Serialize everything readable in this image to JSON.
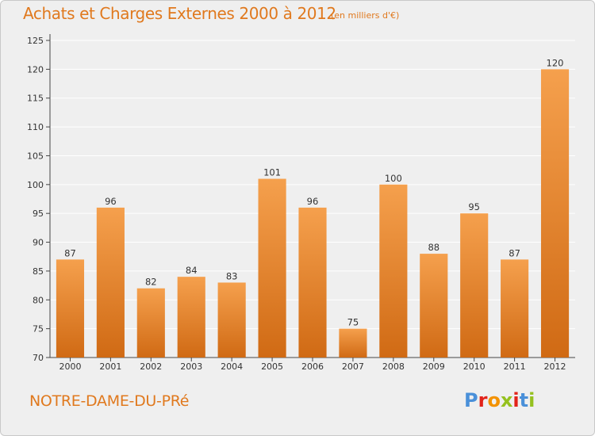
{
  "header": {
    "title": "Achats et Charges Externes 2000 à 2012",
    "subtitle": "(en milliers d'€)"
  },
  "footer": {
    "place": "NOTRE-DAME-DU-PRé",
    "logo": [
      "P",
      "r",
      "o",
      "x",
      "i",
      "t",
      "i"
    ]
  },
  "colors": {
    "title": "#e0791e",
    "bar_top": "#f5a04d",
    "bar_bottom": "#d06a14",
    "grid": "#ffffff",
    "background": "#efefef",
    "logo": [
      "#4a90d9",
      "#e2231a",
      "#f39200",
      "#95c11f",
      "#e2231a",
      "#4a90d9",
      "#95c11f"
    ]
  },
  "chart_data": {
    "type": "bar",
    "categories": [
      "2000",
      "2001",
      "2002",
      "2003",
      "2004",
      "2005",
      "2006",
      "2007",
      "2008",
      "2009",
      "2010",
      "2011",
      "2012"
    ],
    "values": [
      87,
      96,
      82,
      84,
      83,
      101,
      96,
      75,
      100,
      88,
      95,
      87,
      120
    ],
    "ylim": [
      70,
      125
    ],
    "yticks": [
      70,
      75,
      80,
      85,
      90,
      95,
      100,
      105,
      110,
      115,
      120,
      125
    ],
    "grid": true,
    "data_labels": true
  }
}
